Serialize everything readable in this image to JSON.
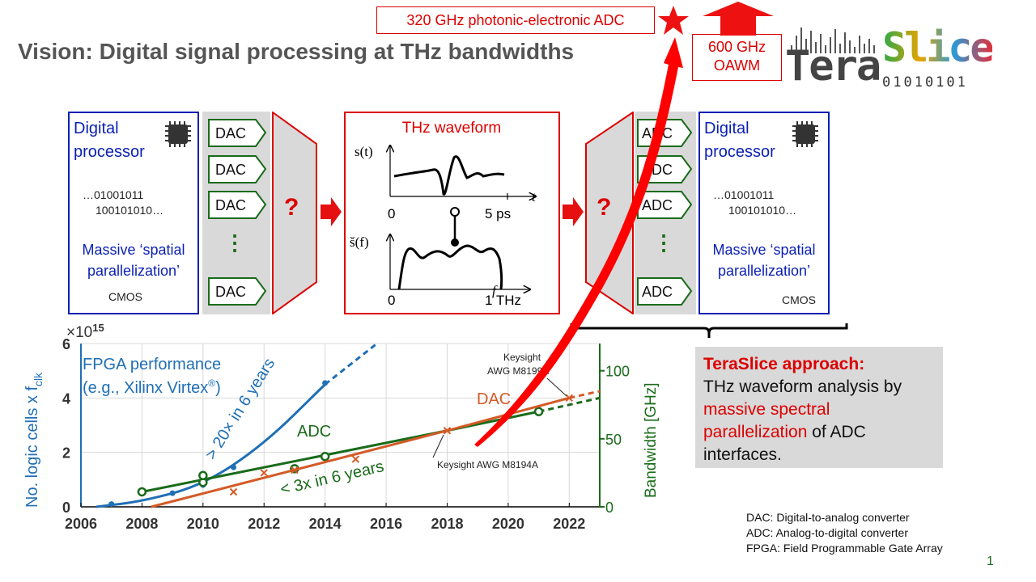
{
  "slide": {
    "title": "Vision: Digital signal processing at THz bandwidths",
    "page_number": "1"
  },
  "headline": {
    "adc_record": "320 GHz photonic-electronic ADC",
    "oawm_line1": "600 GHz",
    "oawm_line2": "OAWM"
  },
  "logo": {
    "part1": "Tera",
    "part2": "Slice",
    "bits": "01010101"
  },
  "left_processor": {
    "title_line1": "Digital",
    "title_line2": "processor",
    "bits_line1": "…01001011",
    "bits_line2": "100101010…",
    "caption_line1": "Massive ‘spatial",
    "caption_line2": "parallelization’",
    "tech": "CMOS"
  },
  "right_processor": {
    "title_line1": "Digital",
    "title_line2": "processor",
    "bits_line1": "…01001011",
    "bits_line2": "100101010…",
    "caption_line1": "Massive ‘spatial",
    "caption_line2": "parallelization’",
    "tech": "CMOS"
  },
  "converters": {
    "dac_label": "DAC",
    "adc_label": "ADC",
    "ellipsis": "⋮",
    "question": "?"
  },
  "waveform": {
    "title": "THz waveform",
    "time_axis_label": "s(t)",
    "time_axis_var": "t",
    "time_start": "0",
    "time_end": "5 ps",
    "freq_axis_label": "š(f)",
    "freq_axis_var": "f",
    "freq_start": "0",
    "freq_end": "1 THz"
  },
  "teraslice": {
    "heading": "TeraSlice approach:",
    "text_1": "THz waveform analysis by",
    "text_2_red": "massive spectral",
    "text_3_red": "parallelization",
    "text_3_rest": " of ADC",
    "text_4": "interfaces."
  },
  "abbreviations": [
    "DAC: Digital-to-analog converter",
    "ADC: Analog-to-digital converter",
    "FPGA: Field Programmable Gate Array"
  ],
  "chart_data": {
    "type": "line",
    "x_ticks": [
      "2006",
      "2008",
      "2010",
      "2012",
      "2014",
      "2016",
      "2018",
      "2020",
      "2022"
    ],
    "xlim": [
      2006,
      2023
    ],
    "left_axis": {
      "label": "No. logic cells x f",
      "label_sub": "clk",
      "multiplier_base": "×10",
      "multiplier_exp": "15",
      "ylim": [
        0,
        6
      ],
      "ticks": [
        "0",
        "2",
        "4",
        "6"
      ],
      "color": "#1f6fb5"
    },
    "right_axis": {
      "label": "Bandwidth [GHz]",
      "ylim": [
        0,
        120
      ],
      "ticks": [
        "0",
        "50",
        "100"
      ],
      "color": "#1a6b1a"
    },
    "annotations": {
      "fpga_line1": "FPGA performance",
      "fpga_line2": "(e.g., Xilinx Virtex",
      "fpga_reg": "®",
      "fpga_close": ")",
      "fpga_growth": "> 20× in 6 years",
      "adc_series": "ADC",
      "adc_growth": "< 3x in 6 years",
      "dac_series": "DAC",
      "keysight_top_1": "Keysight",
      "keysight_top_2": "AWG M8199A",
      "keysight_bottom": "Keysight AWG M8194A"
    },
    "series": [
      {
        "name": "FPGA performance",
        "axis": "left",
        "color": "#1f6fb5",
        "points": [
          [
            2007,
            0.1
          ],
          [
            2009,
            0.5
          ],
          [
            2010,
            0.8
          ],
          [
            2011,
            1.45
          ],
          [
            2014,
            4.55
          ]
        ],
        "fit": [
          [
            2006.5,
            0.0
          ],
          [
            2008,
            0.2
          ],
          [
            2010,
            0.8
          ],
          [
            2012,
            2.3
          ],
          [
            2014,
            4.5
          ],
          [
            2015.7,
            6.0
          ]
        ],
        "fit_dashed_from": 2014
      },
      {
        "name": "ADC",
        "axis": "right",
        "color": "#1a6b1a",
        "points": [
          [
            2008,
            11
          ],
          [
            2010,
            18
          ],
          [
            2010,
            23
          ],
          [
            2013,
            28
          ],
          [
            2014,
            37
          ],
          [
            2021,
            70
          ]
        ],
        "fit": [
          [
            2008,
            11
          ],
          [
            2018,
            56
          ],
          [
            2021,
            70
          ]
        ],
        "fit_dashed": [
          [
            2021,
            70
          ],
          [
            2023,
            80
          ]
        ]
      },
      {
        "name": "DAC",
        "axis": "right",
        "color": "#d35b27",
        "points": [
          [
            2011,
            11
          ],
          [
            2012,
            25
          ],
          [
            2013,
            27
          ],
          [
            2015,
            35
          ],
          [
            2018,
            56
          ],
          [
            2022,
            80
          ]
        ],
        "fit": [
          [
            2008.3,
            0
          ],
          [
            2018,
            56
          ],
          [
            2022,
            80
          ]
        ],
        "fit_dashed": [
          [
            2022,
            80
          ],
          [
            2023,
            85
          ]
        ]
      }
    ]
  }
}
